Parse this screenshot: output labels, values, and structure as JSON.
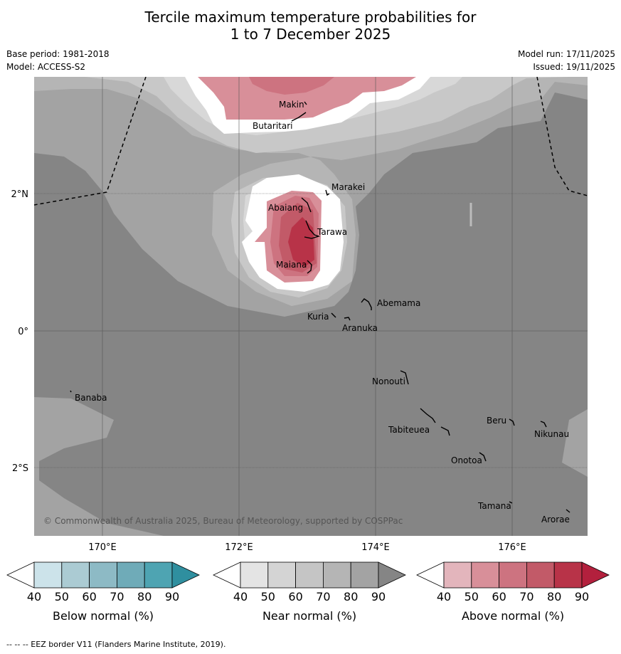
{
  "title_line1": "Tercile maximum temperature probabilities for",
  "title_line2": "1 to 7 December 2025",
  "meta": {
    "base_period": "Base period: 1981-2018",
    "model": "Model: ACCESS-S2",
    "model_run": "Model run: 17/11/2025",
    "issued": "Issued: 19/11/2025"
  },
  "map": {
    "lat_labels": [
      "2°N",
      "0°",
      "2°S"
    ],
    "lon_labels": [
      "170°E",
      "172°E",
      "174°E",
      "176°E"
    ],
    "places": {
      "makin": "Makin",
      "butaritari": "Butaritari",
      "marakei": "Marakei",
      "abaiang": "Abaiang",
      "tarawa": "Tarawa",
      "maiana": "Maiana",
      "abemama": "Abemama",
      "kuria": "Kuria",
      "aranuka": "Aranuka",
      "nonouti": "Nonouti",
      "banaba": "Banaba",
      "tabiteuea": "Tabiteuea",
      "beru": "Beru",
      "nikunau": "Nikunau",
      "onotoa": "Onotoa",
      "tamana": "Tamana",
      "arorae": "Arorae"
    },
    "copyright": "© Commonwealth of Australia 2025, Bureau of Meteorology, supported by COSPPac"
  },
  "colorbars": [
    {
      "label": "Below normal (%)",
      "ticks": [
        "40",
        "50",
        "60",
        "70",
        "80",
        "90"
      ],
      "colors": [
        "#ffffff",
        "#cce3ea",
        "#abcbd3",
        "#8dbac5",
        "#6fabb8",
        "#4ea4b2",
        "#2f8f9f"
      ]
    },
    {
      "label": "Near normal (%)",
      "ticks": [
        "40",
        "50",
        "60",
        "70",
        "80",
        "90"
      ],
      "colors": [
        "#ffffff",
        "#e4e4e4",
        "#d4d4d4",
        "#c5c5c5",
        "#b5b5b5",
        "#a3a3a3",
        "#858585"
      ]
    },
    {
      "label": "Above normal (%)",
      "ticks": [
        "40",
        "50",
        "60",
        "70",
        "80",
        "90"
      ],
      "colors": [
        "#ffffff",
        "#e3b5bc",
        "#d88f99",
        "#cd7380",
        "#c25a68",
        "#b83348",
        "#b3203d"
      ]
    }
  ],
  "footer": "--  --  -- EEZ border V11 (Flanders Marine Institute, 2019)."
}
